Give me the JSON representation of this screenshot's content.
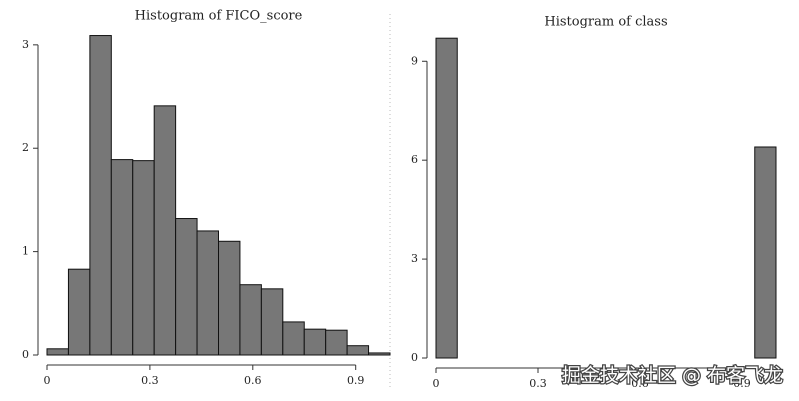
{
  "chart_data": [
    {
      "type": "histogram",
      "title": "Histogram of FICO_score",
      "bins": [
        0,
        0.0625,
        0.125,
        0.1875,
        0.25,
        0.3125,
        0.375,
        0.4375,
        0.5,
        0.5625,
        0.625,
        0.6875,
        0.75,
        0.8125,
        0.875,
        0.9375,
        1
      ],
      "values": [
        0.06,
        0.83,
        3.09,
        1.89,
        1.88,
        2.41,
        1.32,
        1.2,
        1.1,
        0.68,
        0.64,
        0.32,
        0.25,
        0.24,
        0.09,
        0.02
      ],
      "color": "#777777",
      "xlim": [
        0,
        1
      ],
      "xticks": [
        0,
        0.3,
        0.6,
        0.9
      ],
      "ylim": [
        0,
        3.25
      ],
      "yticks": [
        0,
        1,
        2,
        3
      ]
    },
    {
      "type": "histogram",
      "title": "Histogram of class",
      "bins": [
        0,
        0.0625,
        0.125,
        0.1875,
        0.25,
        0.3125,
        0.375,
        0.4375,
        0.5,
        0.5625,
        0.625,
        0.6875,
        0.75,
        0.8125,
        0.875,
        0.9375,
        1
      ],
      "values": [
        9.7,
        0,
        0,
        0,
        0,
        0,
        0,
        0,
        0,
        0,
        0,
        0,
        0,
        0,
        0,
        6.4
      ],
      "color": "#777777",
      "xlim": [
        0,
        1
      ],
      "xticks": [
        0,
        0.3,
        0.6,
        0.9
      ],
      "ylim": [
        0,
        10.1
      ],
      "yticks": [
        0,
        3,
        6,
        9
      ]
    }
  ],
  "watermark": "掘金技术社区 @ 布客飞龙"
}
